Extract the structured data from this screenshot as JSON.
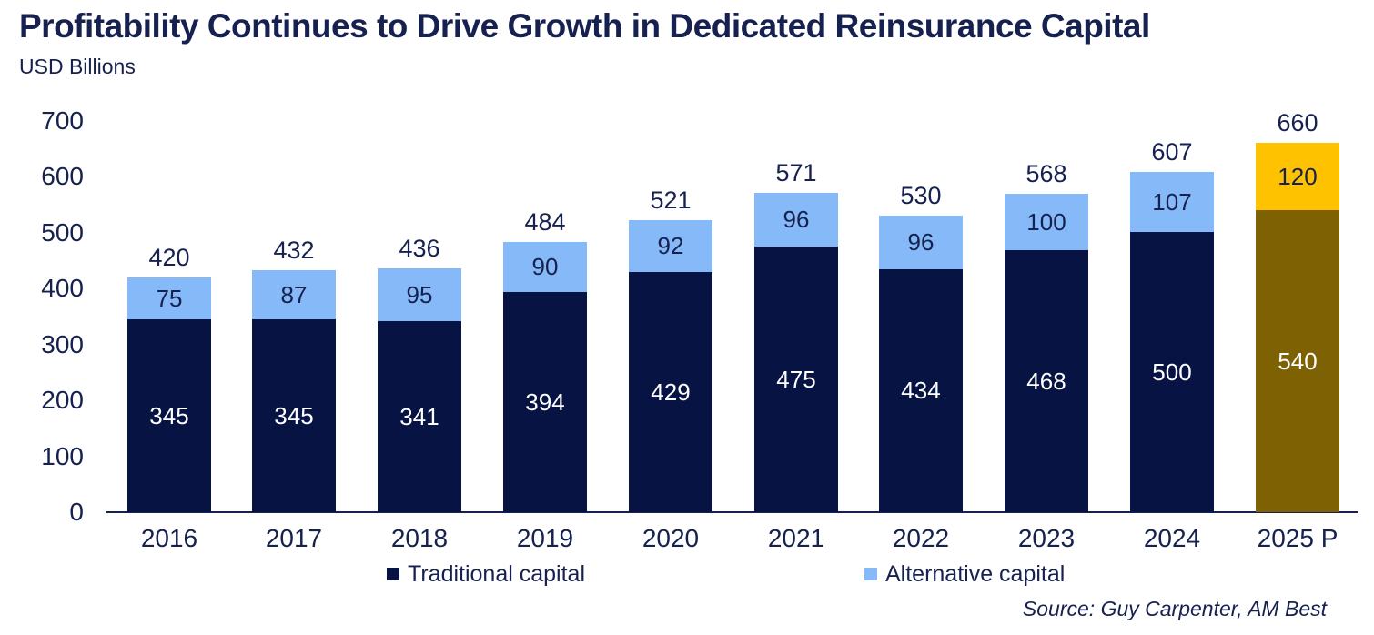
{
  "header": {
    "title": "Profitability Continues to Drive Growth in Dedicated Reinsurance Capital",
    "subtitle": "USD Billions"
  },
  "legend": {
    "items": [
      {
        "label": "Traditional capital",
        "color_key": "navy"
      },
      {
        "label": "Alternative capital",
        "color_key": "light_blue"
      }
    ]
  },
  "source": "Source: Guy Carpenter, AM Best",
  "colors": {
    "navy": "#061343",
    "light_blue": "#86b9f8",
    "gold": "#ffc200",
    "dark_gold": "#7d6103",
    "text_navy": "#16214f",
    "white": "#ffffff"
  },
  "chart_data": {
    "type": "bar",
    "stacked": true,
    "title": "Profitability Continues to Drive Growth in Dedicated Reinsurance Capital",
    "units": "USD Billions",
    "categories": [
      "2016",
      "2017",
      "2018",
      "2019",
      "2020",
      "2021",
      "2022",
      "2023",
      "2024",
      "2025 P"
    ],
    "series": [
      {
        "name": "Traditional capital",
        "values": [
          345,
          345,
          341,
          394,
          429,
          475,
          434,
          468,
          500,
          540
        ]
      },
      {
        "name": "Alternative capital",
        "values": [
          75,
          87,
          95,
          90,
          92,
          96,
          96,
          100,
          107,
          120
        ]
      }
    ],
    "totals": [
      420,
      432,
      436,
      484,
      521,
      571,
      530,
      568,
      607,
      660
    ],
    "ylim": [
      0,
      700
    ],
    "yticks": [
      0,
      100,
      200,
      300,
      400,
      500,
      600,
      700
    ],
    "gridlines": false,
    "legend_position": "bottom",
    "highlight_category": "2025 P",
    "highlight_note": "Projection bar drawn in gold (traditional = dark gold, alternative = bright gold)"
  }
}
